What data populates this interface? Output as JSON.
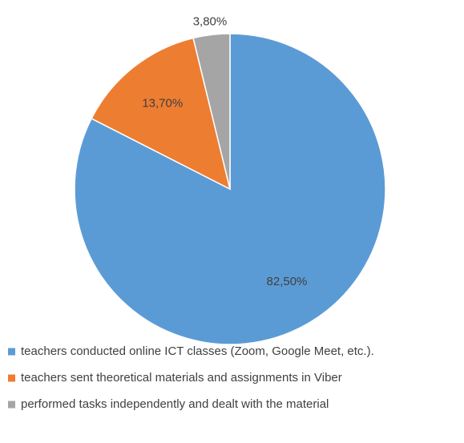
{
  "chart_data": {
    "type": "pie",
    "categories": [
      "teachers conducted online ICT classes (Zoom, Google Meet, etc.).",
      "teachers sent theoretical materials and assignments in Viber",
      "performed tasks independently and dealt with the material"
    ],
    "values": [
      82.5,
      13.7,
      3.8
    ],
    "value_labels": [
      "82,50%",
      "13,70%",
      "3,80%"
    ],
    "colors": [
      "#5b9bd5",
      "#ed7d31",
      "#a5a5a5"
    ]
  }
}
